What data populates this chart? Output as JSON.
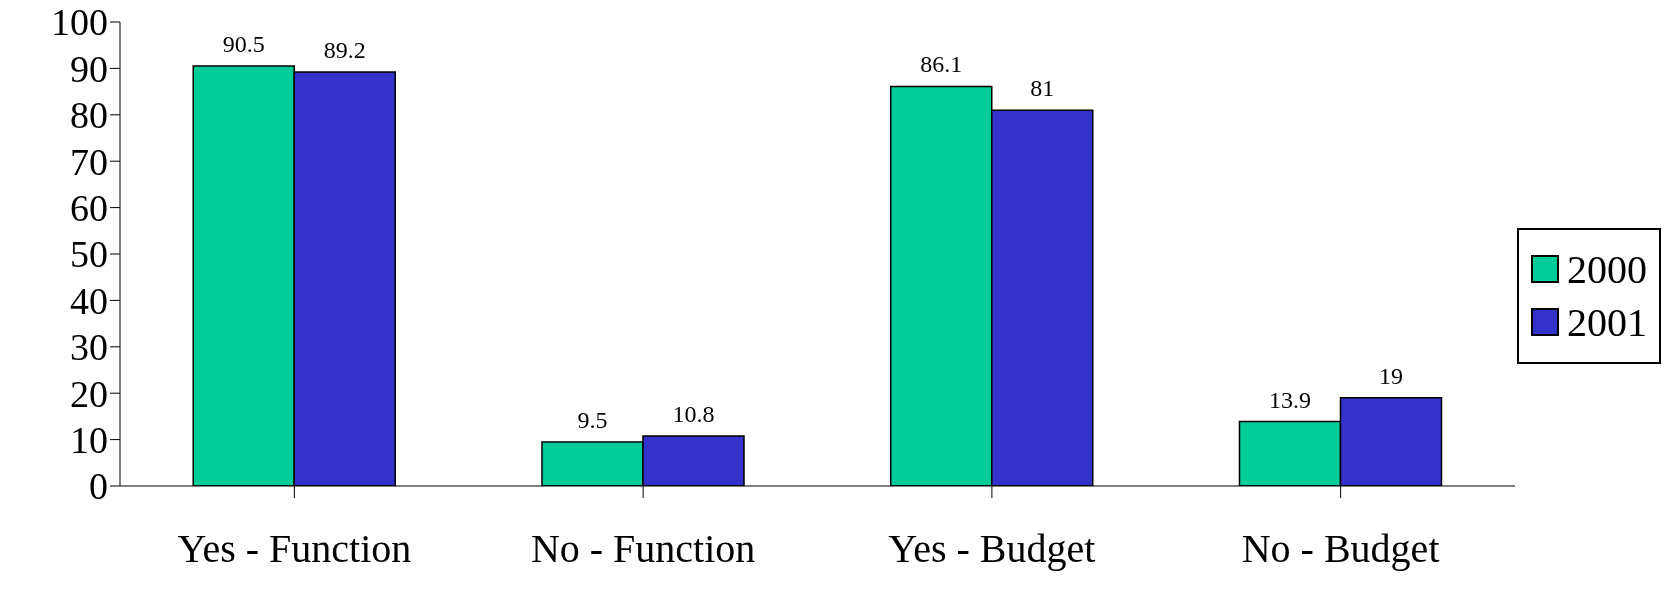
{
  "chart_data": {
    "type": "bar",
    "categories": [
      "Yes - Function",
      "No - Function",
      "Yes - Budget",
      "No - Budget"
    ],
    "series": [
      {
        "name": "2000",
        "color": "#00cc99",
        "values": [
          90.5,
          9.5,
          86.1,
          13.9
        ]
      },
      {
        "name": "2001",
        "color": "#3333cc",
        "values": [
          89.2,
          10.8,
          81,
          19
        ]
      }
    ],
    "ylim": [
      0,
      100
    ],
    "yticks": [
      0,
      10,
      20,
      30,
      40,
      50,
      60,
      70,
      80,
      90,
      100
    ],
    "grid": false,
    "legend": "right",
    "data_labels": true
  }
}
